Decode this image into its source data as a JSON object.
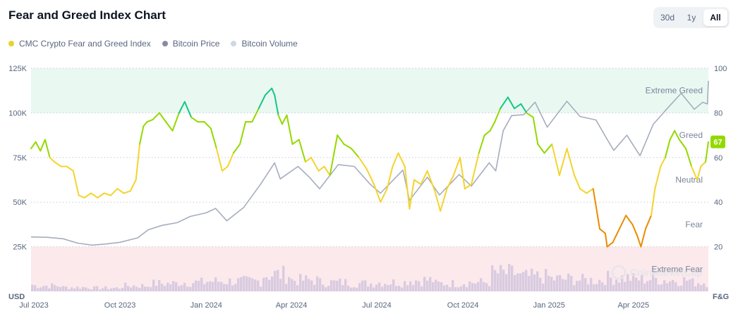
{
  "header": {
    "title": "Fear and Greed Index Chart"
  },
  "range_tabs": [
    {
      "label": "30d",
      "active": false
    },
    {
      "label": "1y",
      "active": false
    },
    {
      "label": "All",
      "active": true
    }
  ],
  "legend": [
    {
      "label": "CMC Crypto Fear and Greed Index",
      "color": "#e8d22c"
    },
    {
      "label": "Bitcoin Price",
      "color": "#858ca2"
    },
    {
      "label": "Bitcoin Volume",
      "color": "#cfd6e4"
    }
  ],
  "colors": {
    "extreme_greed_band": "#eaf8f2",
    "extreme_fear_band": "#fce9ec",
    "price_line": "#a6adbd",
    "volume_bars": "#d9cbe0",
    "extreme_greed": "#16c784",
    "greed": "#93d900",
    "neutral": "#f3d42f",
    "fear": "#ea8c00",
    "extreme_fear": "#ea3943",
    "current_badge": "#93d900",
    "watermark": "#e7e8ec"
  },
  "axes": {
    "usd_label": "USD",
    "fg_label": "F&G",
    "left_ticks": [
      "125K",
      "100K",
      "75K",
      "50K",
      "25K"
    ],
    "right_ticks": [
      "100",
      "80",
      "60",
      "40",
      "20"
    ],
    "x_ticks": [
      "Jul 2023",
      "Oct 2023",
      "Jan 2024",
      "Apr 2024",
      "Jul 2024",
      "Oct 2024",
      "Jan 2025",
      "Apr 2025"
    ]
  },
  "zones": [
    "Extreme Greed",
    "Greed",
    "Neutral",
    "Fear",
    "Extreme Fear"
  ],
  "current_value": "67",
  "watermark": "CoinMarketCap",
  "chart_data": {
    "type": "line",
    "title": "Fear and Greed Index Chart",
    "x_range": [
      "2023-06-28",
      "2025-06-20"
    ],
    "y_left": {
      "label": "USD",
      "range": [
        0,
        125000
      ],
      "ticks": [
        25000,
        50000,
        75000,
        100000,
        125000
      ]
    },
    "y_right": {
      "label": "F&G",
      "range": [
        0,
        100
      ],
      "ticks": [
        20,
        40,
        60,
        80,
        100
      ]
    },
    "bands": [
      {
        "name": "Extreme Greed",
        "from": 80,
        "to": 100
      },
      {
        "name": "Extreme Fear",
        "from": 0,
        "to": 20
      }
    ],
    "fg_thresholds": {
      "extreme_fear": 20,
      "fear": 40,
      "neutral": 60,
      "greed": 80
    },
    "series": [
      {
        "name": "CMC Crypto Fear and Greed Index",
        "axis": "right",
        "points": [
          [
            "2023-06-28",
            64
          ],
          [
            "2023-07-03",
            67
          ],
          [
            "2023-07-08",
            63
          ],
          [
            "2023-07-13",
            68
          ],
          [
            "2023-07-18",
            60
          ],
          [
            "2023-07-23",
            58
          ],
          [
            "2023-07-30",
            56
          ],
          [
            "2023-08-05",
            56
          ],
          [
            "2023-08-12",
            54
          ],
          [
            "2023-08-18",
            43
          ],
          [
            "2023-08-24",
            42
          ],
          [
            "2023-08-31",
            44
          ],
          [
            "2023-09-07",
            42
          ],
          [
            "2023-09-14",
            44
          ],
          [
            "2023-09-21",
            43
          ],
          [
            "2023-09-28",
            46
          ],
          [
            "2023-10-05",
            44
          ],
          [
            "2023-10-12",
            45
          ],
          [
            "2023-10-18",
            50
          ],
          [
            "2023-10-22",
            66
          ],
          [
            "2023-10-26",
            74
          ],
          [
            "2023-10-30",
            76
          ],
          [
            "2023-11-05",
            77
          ],
          [
            "2023-11-12",
            80
          ],
          [
            "2023-11-19",
            76
          ],
          [
            "2023-11-26",
            72
          ],
          [
            "2023-12-03",
            80
          ],
          [
            "2023-12-09",
            85
          ],
          [
            "2023-12-16",
            78
          ],
          [
            "2023-12-23",
            76
          ],
          [
            "2023-12-30",
            76
          ],
          [
            "2024-01-06",
            73
          ],
          [
            "2024-01-12",
            64
          ],
          [
            "2024-01-18",
            54
          ],
          [
            "2024-01-24",
            56
          ],
          [
            "2024-01-30",
            62
          ],
          [
            "2024-02-06",
            66
          ],
          [
            "2024-02-12",
            76
          ],
          [
            "2024-02-19",
            76
          ],
          [
            "2024-02-26",
            82
          ],
          [
            "2024-03-04",
            88
          ],
          [
            "2024-03-11",
            91
          ],
          [
            "2024-03-14",
            88
          ],
          [
            "2024-03-18",
            79
          ],
          [
            "2024-03-22",
            75
          ],
          [
            "2024-03-27",
            79
          ],
          [
            "2024-04-02",
            66
          ],
          [
            "2024-04-09",
            68
          ],
          [
            "2024-04-16",
            58
          ],
          [
            "2024-04-22",
            60
          ],
          [
            "2024-04-30",
            54
          ],
          [
            "2024-05-06",
            56
          ],
          [
            "2024-05-12",
            52
          ],
          [
            "2024-05-20",
            70
          ],
          [
            "2024-05-27",
            66
          ],
          [
            "2024-06-04",
            64
          ],
          [
            "2024-06-12",
            60
          ],
          [
            "2024-06-20",
            55
          ],
          [
            "2024-06-28",
            48
          ],
          [
            "2024-07-05",
            40
          ],
          [
            "2024-07-12",
            46
          ],
          [
            "2024-07-18",
            56
          ],
          [
            "2024-07-24",
            62
          ],
          [
            "2024-07-31",
            56
          ],
          [
            "2024-08-05",
            37
          ],
          [
            "2024-08-10",
            50
          ],
          [
            "2024-08-17",
            48
          ],
          [
            "2024-08-24",
            54
          ],
          [
            "2024-09-01",
            45
          ],
          [
            "2024-09-07",
            36
          ],
          [
            "2024-09-14",
            46
          ],
          [
            "2024-09-21",
            52
          ],
          [
            "2024-09-28",
            60
          ],
          [
            "2024-10-03",
            46
          ],
          [
            "2024-10-10",
            48
          ],
          [
            "2024-10-18",
            62
          ],
          [
            "2024-10-24",
            70
          ],
          [
            "2024-10-30",
            72
          ],
          [
            "2024-11-04",
            76
          ],
          [
            "2024-11-10",
            82
          ],
          [
            "2024-11-18",
            87
          ],
          [
            "2024-11-25",
            82
          ],
          [
            "2024-12-02",
            84
          ],
          [
            "2024-12-08",
            80
          ],
          [
            "2024-12-15",
            78
          ],
          [
            "2024-12-20",
            66
          ],
          [
            "2024-12-27",
            62
          ],
          [
            "2025-01-04",
            66
          ],
          [
            "2025-01-12",
            52
          ],
          [
            "2025-01-20",
            64
          ],
          [
            "2025-01-28",
            52
          ],
          [
            "2025-02-03",
            46
          ],
          [
            "2025-02-10",
            44
          ],
          [
            "2025-02-17",
            46
          ],
          [
            "2025-02-24",
            28
          ],
          [
            "2025-03-02",
            26
          ],
          [
            "2025-03-04",
            20
          ],
          [
            "2025-03-10",
            22
          ],
          [
            "2025-03-17",
            28
          ],
          [
            "2025-03-24",
            34
          ],
          [
            "2025-03-31",
            30
          ],
          [
            "2025-04-05",
            25
          ],
          [
            "2025-04-09",
            20
          ],
          [
            "2025-04-14",
            28
          ],
          [
            "2025-04-20",
            34
          ],
          [
            "2025-04-24",
            46
          ],
          [
            "2025-04-30",
            56
          ],
          [
            "2025-05-05",
            60
          ],
          [
            "2025-05-10",
            68
          ],
          [
            "2025-05-15",
            72
          ],
          [
            "2025-05-20",
            68
          ],
          [
            "2025-05-27",
            64
          ],
          [
            "2025-06-02",
            56
          ],
          [
            "2025-06-08",
            50
          ],
          [
            "2025-06-12",
            56
          ],
          [
            "2025-06-17",
            58
          ],
          [
            "2025-06-20",
            67
          ]
        ]
      },
      {
        "name": "Bitcoin Price",
        "axis": "left",
        "points": [
          [
            "2023-06-28",
            30500
          ],
          [
            "2023-07-15",
            30300
          ],
          [
            "2023-08-01",
            29500
          ],
          [
            "2023-08-17",
            27000
          ],
          [
            "2023-09-01",
            25900
          ],
          [
            "2023-09-15",
            26500
          ],
          [
            "2023-10-01",
            27500
          ],
          [
            "2023-10-20",
            30000
          ],
          [
            "2023-10-31",
            34500
          ],
          [
            "2023-11-15",
            37000
          ],
          [
            "2023-12-01",
            38500
          ],
          [
            "2023-12-15",
            42000
          ],
          [
            "2024-01-01",
            44000
          ],
          [
            "2024-01-11",
            46500
          ],
          [
            "2024-01-23",
            39500
          ],
          [
            "2024-02-10",
            47000
          ],
          [
            "2024-02-28",
            60000
          ],
          [
            "2024-03-14",
            72000
          ],
          [
            "2024-03-20",
            63000
          ],
          [
            "2024-04-08",
            70000
          ],
          [
            "2024-04-20",
            64000
          ],
          [
            "2024-05-01",
            57500
          ],
          [
            "2024-05-21",
            71000
          ],
          [
            "2024-06-07",
            70000
          ],
          [
            "2024-06-24",
            60000
          ],
          [
            "2024-07-05",
            55000
          ],
          [
            "2024-07-29",
            68000
          ],
          [
            "2024-08-05",
            51000
          ],
          [
            "2024-08-24",
            64000
          ],
          [
            "2024-09-06",
            54000
          ],
          [
            "2024-09-27",
            65500
          ],
          [
            "2024-10-10",
            59000
          ],
          [
            "2024-10-29",
            72000
          ],
          [
            "2024-11-05",
            67500
          ],
          [
            "2024-11-13",
            90000
          ],
          [
            "2024-11-22",
            98500
          ],
          [
            "2024-12-05",
            99000
          ],
          [
            "2024-12-17",
            106000
          ],
          [
            "2024-12-30",
            92000
          ],
          [
            "2025-01-20",
            106500
          ],
          [
            "2025-02-03",
            98000
          ],
          [
            "2025-02-20",
            96000
          ],
          [
            "2025-03-03",
            86000
          ],
          [
            "2025-03-11",
            79000
          ],
          [
            "2025-03-25",
            87500
          ],
          [
            "2025-04-08",
            76000
          ],
          [
            "2025-04-22",
            93500
          ],
          [
            "2025-05-08",
            103000
          ],
          [
            "2025-05-22",
            111000
          ],
          [
            "2025-06-05",
            102000
          ],
          [
            "2025-06-14",
            106000
          ],
          [
            "2025-06-19",
            105000
          ],
          [
            "2025-06-20",
            118000
          ]
        ]
      },
      {
        "name": "Bitcoin Volume",
        "axis": "none",
        "note": "relative bars along the bottom of the plot",
        "points": [
          [
            "2023-07",
            0.25
          ],
          [
            "2023-08",
            0.18
          ],
          [
            "2023-09",
            0.15
          ],
          [
            "2023-10",
            0.25
          ],
          [
            "2023-11",
            0.35
          ],
          [
            "2023-12",
            0.4
          ],
          [
            "2024-01",
            0.45
          ],
          [
            "2024-02",
            0.45
          ],
          [
            "2024-03",
            0.75
          ],
          [
            "2024-04",
            0.5
          ],
          [
            "2024-05",
            0.4
          ],
          [
            "2024-06",
            0.35
          ],
          [
            "2024-07",
            0.4
          ],
          [
            "2024-08",
            0.5
          ],
          [
            "2024-09",
            0.35
          ],
          [
            "2024-10",
            0.4
          ],
          [
            "2024-11",
            0.8
          ],
          [
            "2024-12",
            0.65
          ],
          [
            "2025-01",
            0.55
          ],
          [
            "2025-02",
            0.5
          ],
          [
            "2025-03",
            0.6
          ],
          [
            "2025-04",
            0.55
          ],
          [
            "2025-05",
            0.5
          ],
          [
            "2025-06",
            0.4
          ]
        ]
      }
    ],
    "legend_position": "top-left",
    "grid": true
  }
}
